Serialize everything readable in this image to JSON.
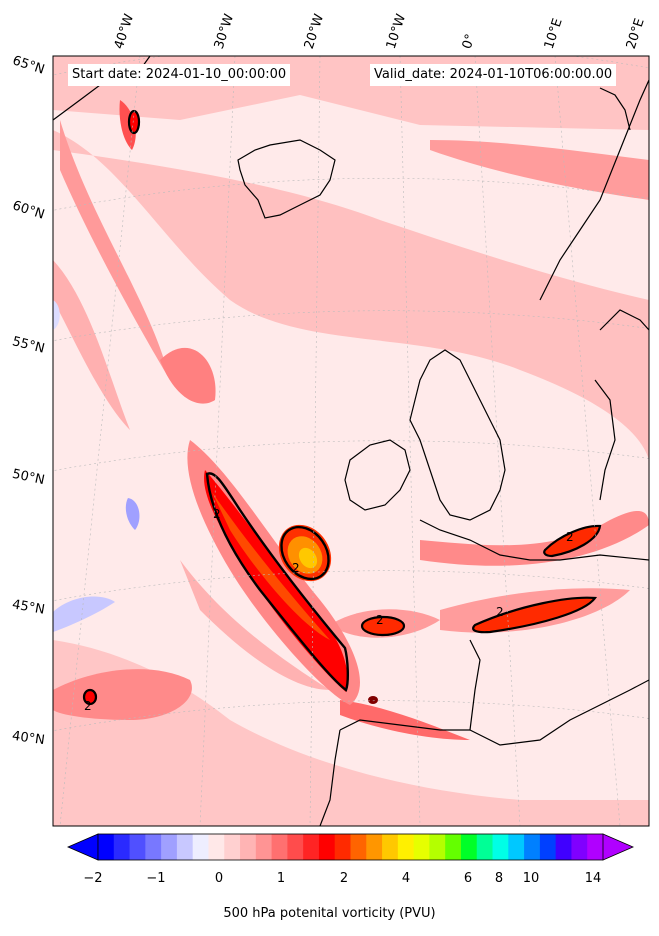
{
  "header": {
    "start_date": "Start date: 2024-01-10_00:00:00",
    "valid_date": "Valid_date: 2024-01-10T06:00:00.00"
  },
  "map": {
    "longitude_labels": [
      "40°W",
      "30°W",
      "20°W",
      "10°W",
      "0°",
      "10°E",
      "20°E"
    ],
    "latitude_labels": [
      "65°N",
      "60°N",
      "55°N",
      "50°N",
      "45°N",
      "40°N"
    ],
    "contour_labels": [
      "2",
      "2",
      "2",
      "2",
      "2",
      "2"
    ]
  },
  "colorbar": {
    "title": "500 hPa potenital vorticity (PVU)",
    "ticks": [
      "−2",
      "−1",
      "0",
      "1",
      "2",
      "4",
      "6",
      "8",
      "10",
      "14"
    ],
    "colors": [
      "#0000ff",
      "#2a2aff",
      "#5050ff",
      "#7878ff",
      "#a0a0ff",
      "#c8c8ff",
      "#eeeeff",
      "#ffe8e8",
      "#ffd0d0",
      "#ffb4b4",
      "#ff9494",
      "#ff7070",
      "#ff4c4c",
      "#ff2424",
      "#ff0000",
      "#ff2a00",
      "#ff6400",
      "#ff9600",
      "#ffc800",
      "#fff000",
      "#e6ff00",
      "#b4ff00",
      "#64ff00",
      "#00ff28",
      "#00ff96",
      "#00ffe6",
      "#00c8ff",
      "#0080ff",
      "#0040ff",
      "#4000ff",
      "#8000ff",
      "#b000ff"
    ]
  }
}
